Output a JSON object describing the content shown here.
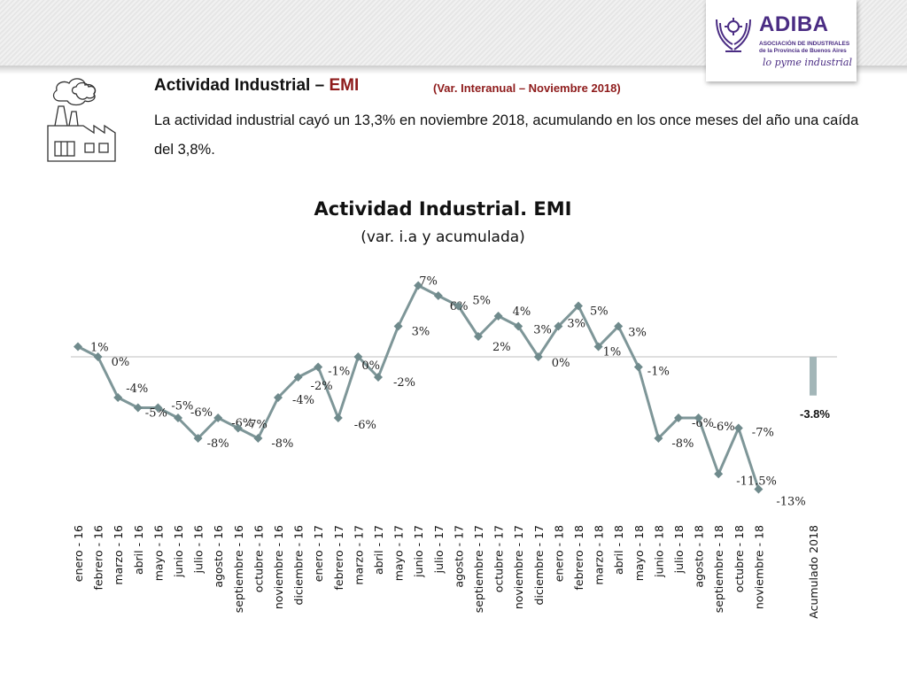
{
  "header": {
    "title_main": "Actividad Industrial – ",
    "title_emi": "EMI",
    "title_sub": "(Var. Interanual – Noviembre 2018)",
    "description": "La actividad industrial cayó un 13,3% en noviembre 2018,  acumulando en los once meses del año una caída del 3,8%."
  },
  "logo": {
    "name": "ADIBA",
    "sub_line1": "ASOCIACIÓN DE INDUSTRIALES",
    "sub_line2": "de la Provincia de Buenos Aires",
    "slogan": "lo pyme industrial",
    "color": "#4a2c83"
  },
  "icons": {
    "factory": "factory-icon",
    "logo_mark": "hands-gear-icon"
  },
  "colors": {
    "line": "#7e9698",
    "marker": "#6f8a8c",
    "bar": "#a3b6b8",
    "axis": "#bfbfbf",
    "emi": "#8e1b1b"
  },
  "chart_data": {
    "type": "line",
    "title": "Actividad Industrial. EMI",
    "subtitle": "(var. i.a y acumulada)",
    "categories": [
      "enero - 16",
      "febrero - 16",
      "marzo - 16",
      "abril - 16",
      "mayo - 16",
      "junio - 16",
      "julio - 16",
      "agosto - 16",
      "septiembre - 16",
      "octubre - 16",
      "noviembre - 16",
      "diciembre - 16",
      "enero - 17",
      "febrero - 17",
      "marzo - 17",
      "abril - 17",
      "mayo - 17",
      "junio - 17",
      "julio - 17",
      "agosto - 17",
      "septiembre - 17",
      "octubre - 17",
      "noviembre - 17",
      "diciembre - 17",
      "enero - 18",
      "febrero - 18",
      "marzo - 18",
      "abril - 18",
      "mayo - 18",
      "junio - 18",
      "julio - 18",
      "agosto - 18",
      "septiembre - 18",
      "octubre - 18",
      "noviembre - 18"
    ],
    "values": [
      1,
      0,
      -4,
      -5,
      -5,
      -6,
      -8,
      -6,
      -7,
      -8,
      -4,
      -2,
      -1,
      -6,
      0,
      -2,
      3,
      7,
      6,
      5,
      2,
      4,
      3,
      0,
      3,
      5,
      1,
      3,
      -1,
      -8,
      -6,
      -6,
      -11.5,
      -7,
      -13
    ],
    "labels": [
      "1%",
      "0%",
      "-4%",
      "-5%",
      "-5%",
      "-6%",
      "-8%",
      "-6%",
      "-7%",
      "-8%",
      "-4%",
      "-2%",
      "-1%",
      "-6%",
      "0%",
      "-2%",
      "3%",
      "7%",
      "6%",
      "5%",
      "2%",
      "4%",
      "3%",
      "0%",
      "3%",
      "5%",
      "1%",
      "3%",
      "-1%",
      "-8%",
      "-6%",
      "-6%",
      "-11.5%",
      "-7%",
      "-13%"
    ],
    "accumulated": {
      "category": "Acumulado 2018",
      "value": -3.8,
      "label": "-3.8%"
    },
    "legend": "none",
    "grid": false
  }
}
